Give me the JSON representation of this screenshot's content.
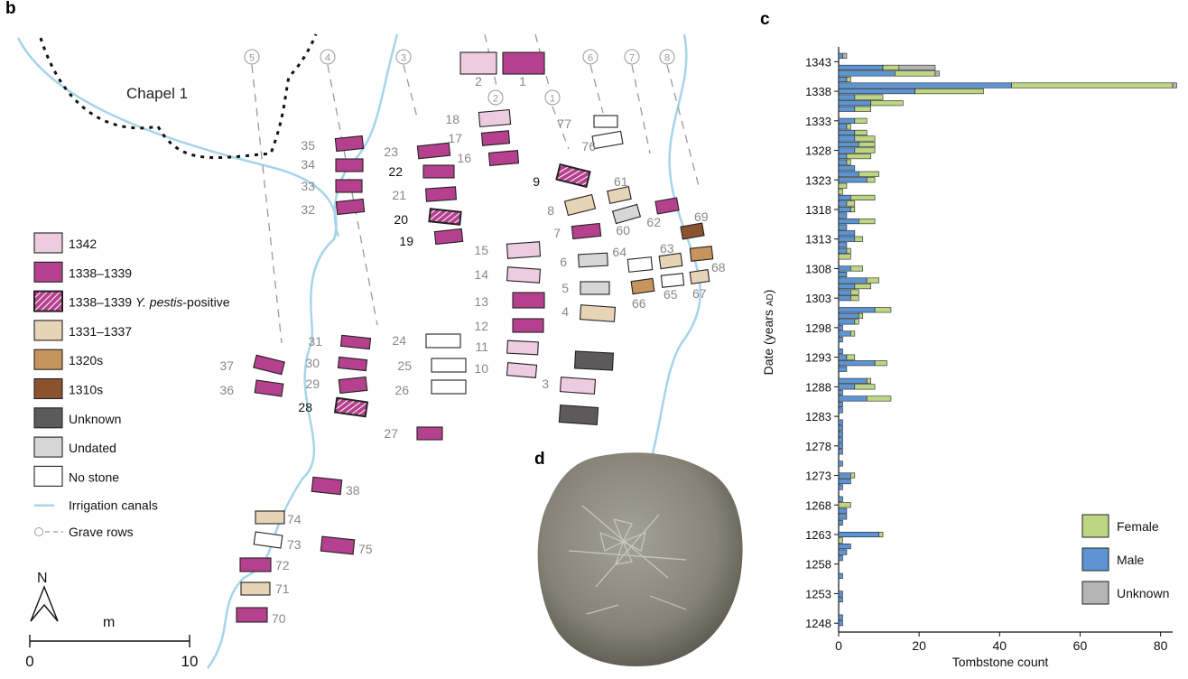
{
  "panels": {
    "b": "b",
    "c": "c",
    "d": "d"
  },
  "map": {
    "chapel_label": "Chapel 1",
    "rows": [
      {
        "label": "5"
      },
      {
        "label": "4"
      },
      {
        "label": "3"
      },
      {
        "label": "2"
      },
      {
        "label": "1"
      },
      {
        "label": "6"
      },
      {
        "label": "7"
      },
      {
        "label": "8"
      }
    ],
    "graves": [
      {
        "n": "1",
        "cat": "1338-1339"
      },
      {
        "n": "2",
        "cat": "1342"
      },
      {
        "n": "3",
        "cat": "1342"
      },
      {
        "n": "4",
        "cat": "1331-1337"
      },
      {
        "n": "5",
        "cat": "undated"
      },
      {
        "n": "6",
        "cat": "undated"
      },
      {
        "n": "7",
        "cat": "1338-1339"
      },
      {
        "n": "8",
        "cat": "1331-1337"
      },
      {
        "n": "9",
        "cat": "ypestis"
      },
      {
        "n": "10",
        "cat": "1342"
      },
      {
        "n": "11",
        "cat": "1342"
      },
      {
        "n": "12",
        "cat": "1338-1339"
      },
      {
        "n": "13",
        "cat": "1338-1339"
      },
      {
        "n": "14",
        "cat": "1342"
      },
      {
        "n": "15",
        "cat": "1342"
      },
      {
        "n": "16",
        "cat": "1338-1339"
      },
      {
        "n": "17",
        "cat": "1338-1339"
      },
      {
        "n": "18",
        "cat": "1342"
      },
      {
        "n": "19",
        "cat": "1338-1339"
      },
      {
        "n": "20",
        "cat": "ypestis"
      },
      {
        "n": "21",
        "cat": "1338-1339"
      },
      {
        "n": "22",
        "cat": "1338-1339"
      },
      {
        "n": "23",
        "cat": "1338-1339"
      },
      {
        "n": "24",
        "cat": "nostone"
      },
      {
        "n": "25",
        "cat": "nostone"
      },
      {
        "n": "26",
        "cat": "nostone"
      },
      {
        "n": "27",
        "cat": "1338-1339"
      },
      {
        "n": "28",
        "cat": "ypestis"
      },
      {
        "n": "29",
        "cat": "1338-1339"
      },
      {
        "n": "30",
        "cat": "1338-1339"
      },
      {
        "n": "31",
        "cat": "1338-1339"
      },
      {
        "n": "32",
        "cat": "1338-1339"
      },
      {
        "n": "33",
        "cat": "1338-1339"
      },
      {
        "n": "34",
        "cat": "1338-1339"
      },
      {
        "n": "35",
        "cat": "1338-1339"
      },
      {
        "n": "36",
        "cat": "1338-1339"
      },
      {
        "n": "37",
        "cat": "1338-1339"
      },
      {
        "n": "38",
        "cat": "1338-1339"
      },
      {
        "n": "60",
        "cat": "undated"
      },
      {
        "n": "61",
        "cat": "1331-1337"
      },
      {
        "n": "62",
        "cat": "1338-1339"
      },
      {
        "n": "63",
        "cat": "1331-1337"
      },
      {
        "n": "64",
        "cat": "nostone"
      },
      {
        "n": "65",
        "cat": "nostone"
      },
      {
        "n": "66",
        "cat": "1320s"
      },
      {
        "n": "67",
        "cat": "1331-1337"
      },
      {
        "n": "68",
        "cat": "1320s"
      },
      {
        "n": "69",
        "cat": "1310s"
      },
      {
        "n": "70",
        "cat": "1338-1339"
      },
      {
        "n": "71",
        "cat": "1331-1337"
      },
      {
        "n": "72",
        "cat": "1338-1339"
      },
      {
        "n": "73",
        "cat": "nostone"
      },
      {
        "n": "74",
        "cat": "1331-1337"
      },
      {
        "n": "75",
        "cat": "1338-1339"
      },
      {
        "n": "76",
        "cat": "nostone"
      },
      {
        "n": "77",
        "cat": "nostone"
      },
      {
        "n": "",
        "cat": "unknown"
      },
      {
        "n": "",
        "cat": "unknown"
      }
    ],
    "legend": [
      {
        "key": "1342",
        "label": "1342"
      },
      {
        "key": "1338-1339",
        "label": "1338–1339"
      },
      {
        "key": "ypestis",
        "label_pre": "1338–1339 ",
        "label_italic": "Y. pestis",
        "label_post": "-positive"
      },
      {
        "key": "1331-1337",
        "label": "1331–1337"
      },
      {
        "key": "1320s",
        "label": "1320s"
      },
      {
        "key": "1310s",
        "label": "1310s"
      },
      {
        "key": "unknown",
        "label": "Unknown"
      },
      {
        "key": "undated",
        "label": "Undated"
      },
      {
        "key": "nostone",
        "label": "No stone"
      },
      {
        "key": "canal",
        "label": "Irrigation canals"
      },
      {
        "key": "rows",
        "label": "Grave rows"
      }
    ],
    "north_label": "N",
    "scale": {
      "unit": "m",
      "ticks": [
        "0",
        "10"
      ]
    },
    "colors": {
      "1342": "#edcce2",
      "1338-1339": "#b5418e",
      "ypestis": "#b5418e",
      "1331-1337": "#e7d4b6",
      "1320s": "#c8945e",
      "1310s": "#8b5230",
      "unknown": "#5c5a5b",
      "undated": "#d7d7d7",
      "nostone": "#ffffff",
      "canal": "#a6d4ea",
      "rows": "#9a9a9a"
    }
  },
  "chart_data": {
    "type": "bar",
    "orientation": "horizontal",
    "stacked": true,
    "xlabel": "Tombstone count",
    "ylabel_main": "Date (years ",
    "ylabel_small": "AD",
    "ylabel_end": ")",
    "xlim": [
      0,
      83
    ],
    "xticks": [
      0,
      20,
      40,
      60,
      80
    ],
    "ylim": [
      1246.5,
      1345.5
    ],
    "yticks": [
      1248,
      1253,
      1258,
      1263,
      1268,
      1273,
      1278,
      1283,
      1288,
      1293,
      1298,
      1303,
      1308,
      1313,
      1318,
      1323,
      1328,
      1333,
      1338,
      1343
    ],
    "legend_position": "bottom-right",
    "series": [
      {
        "name": "Male",
        "color": "#5c95d2",
        "values": {
          "1248": 1,
          "1249": 1,
          "1252": 1,
          "1253": 1,
          "1256": 1,
          "1259": 1,
          "1260": 2,
          "1261": 3,
          "1263": 10,
          "1265": 1,
          "1266": 2,
          "1267": 2,
          "1269": 1,
          "1271": 1,
          "1272": 3,
          "1273": 3,
          "1275": 1,
          "1277": 1,
          "1278": 1,
          "1279": 1,
          "1280": 1,
          "1281": 1,
          "1282": 1,
          "1284": 1,
          "1285": 1,
          "1286": 7,
          "1287": 1,
          "1288": 4,
          "1289": 7,
          "1291": 2,
          "1292": 9,
          "1293": 2,
          "1294": 1,
          "1296": 1,
          "1297": 3,
          "1298": 1,
          "1299": 4,
          "1300": 5,
          "1301": 9,
          "1303": 3,
          "1304": 3,
          "1305": 4,
          "1306": 7,
          "1307": 2,
          "1308": 3,
          "1311": 2,
          "1312": 2,
          "1313": 4,
          "1314": 4,
          "1315": 2,
          "1316": 5,
          "1317": 2,
          "1318": 3,
          "1319": 2,
          "1320": 3,
          "1323": 7,
          "1324": 5,
          "1325": 4,
          "1326": 2,
          "1327": 2,
          "1328": 4,
          "1329": 5,
          "1330": 4,
          "1331": 4,
          "1332": 2,
          "1333": 4,
          "1335": 4,
          "1336": 8,
          "1337": 4,
          "1338": 19,
          "1339": 43,
          "1340": 2,
          "1341": 14,
          "1342": 11,
          "1344": 1
        },
        "color_key": "male"
      },
      {
        "name": "Female",
        "color": "#bdd684",
        "values": {
          "1262": 1,
          "1263": 1,
          "1268": 3,
          "1273": 1,
          "1286": 6,
          "1288": 5,
          "1289": 1,
          "1292": 3,
          "1293": 2,
          "1297": 1,
          "1299": 1,
          "1300": 1,
          "1301": 4,
          "1303": 2,
          "1304": 2,
          "1305": 4,
          "1306": 3,
          "1308": 3,
          "1310": 3,
          "1311": 1,
          "1313": 2,
          "1316": 4,
          "1318": 1,
          "1319": 2,
          "1320": 6,
          "1321": 1,
          "1322": 2,
          "1323": 2,
          "1324": 5,
          "1326": 1,
          "1327": 6,
          "1328": 5,
          "1329": 4,
          "1330": 5,
          "1331": 3,
          "1332": 1,
          "1333": 3,
          "1335": 4,
          "1336": 8,
          "1337": 7,
          "1338": 17,
          "1339": 40,
          "1340": 1,
          "1341": 10,
          "1342": 4
        },
        "color_key": "female"
      },
      {
        "name": "Unknown",
        "color": "#b4b4b4",
        "values": {
          "1341": 1,
          "1342": 9,
          "1344": 1,
          "1339": 1
        },
        "color_key": "unknown"
      }
    ],
    "legend": [
      {
        "name": "Female",
        "color": "#bdd684"
      },
      {
        "name": "Male",
        "color": "#5c95d2"
      },
      {
        "name": "Unknown",
        "color": "#b4b4b4"
      }
    ]
  }
}
